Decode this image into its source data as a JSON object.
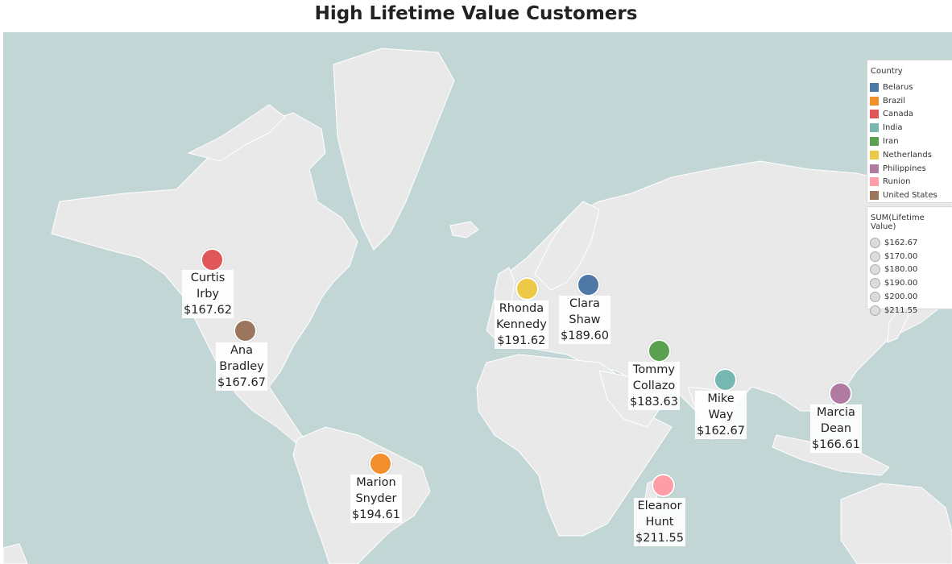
{
  "title": "High Lifetime Value Customers",
  "customers": [
    {
      "first": "Curtis",
      "last": "Irby",
      "value": "$167.62",
      "country": "Canada",
      "color": "#e15759"
    },
    {
      "first": "Ana",
      "last": "Bradley",
      "value": "$167.67",
      "country": "United States",
      "color": "#9c755f"
    },
    {
      "first": "Marion",
      "last": "Snyder",
      "value": "$194.61",
      "country": "Brazil",
      "color": "#f28e2b"
    },
    {
      "first": "Rhonda",
      "last": "Kennedy",
      "value": "$191.62",
      "country": "Netherlands",
      "color": "#edc948"
    },
    {
      "first": "Clara",
      "last": "Shaw",
      "value": "$189.60",
      "country": "Belarus",
      "color": "#4e79a7"
    },
    {
      "first": "Tommy",
      "last": "Collazo",
      "value": "$183.63",
      "country": "Iran",
      "color": "#59a14f"
    },
    {
      "first": "Mike",
      "last": "Way",
      "value": "$162.67",
      "country": "India",
      "color": "#76b7b2"
    },
    {
      "first": "Marcia",
      "last": "Dean",
      "value": "$166.61",
      "country": "Philippines",
      "color": "#b07aa1"
    },
    {
      "first": "Eleanor",
      "last": "Hunt",
      "value": "$211.55",
      "country": "Runion",
      "color": "#ff9da7"
    }
  ],
  "legend_country": {
    "title": "Country",
    "items": [
      {
        "label": "Belarus",
        "color": "#4e79a7"
      },
      {
        "label": "Brazil",
        "color": "#f28e2b"
      },
      {
        "label": "Canada",
        "color": "#e15759"
      },
      {
        "label": "India",
        "color": "#76b7b2"
      },
      {
        "label": "Iran",
        "color": "#59a14f"
      },
      {
        "label": "Netherlands",
        "color": "#edc948"
      },
      {
        "label": "Philippines",
        "color": "#b07aa1"
      },
      {
        "label": "Runion",
        "color": "#ff9da7"
      },
      {
        "label": "United States",
        "color": "#9c755f"
      }
    ]
  },
  "legend_size": {
    "title": "SUM(Lifetime Value)",
    "items": [
      "$162.67",
      "$170.00",
      "$180.00",
      "$190.00",
      "$200.00",
      "$211.55"
    ]
  }
}
